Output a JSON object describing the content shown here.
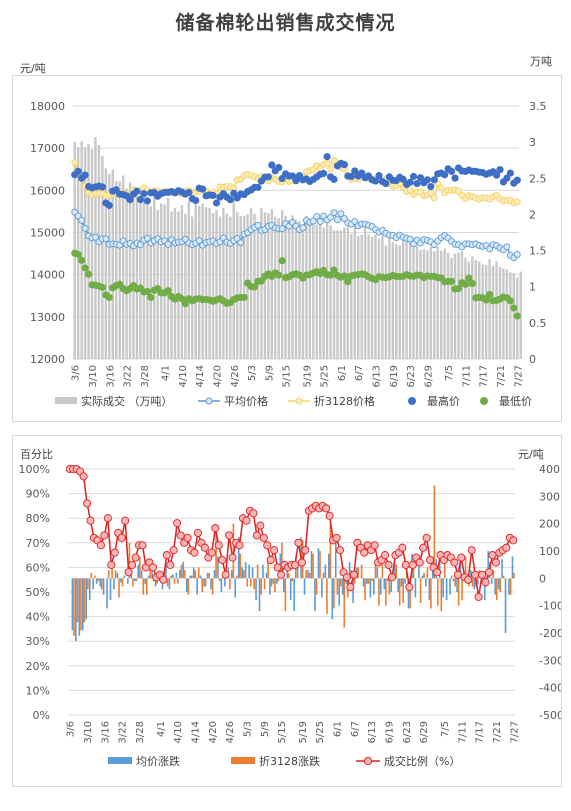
{
  "page_title": "储备棉轮出销售成交情况",
  "colors": {
    "volume_bar": "#c8c8c8",
    "avg_price": "#5b9bd5",
    "avg_price_fill": "#dbe8f5",
    "p3128": "#f5d26a",
    "p3128_fill": "#fbecb8",
    "max_price": "#3f6fc5",
    "min_price": "#70ad47",
    "avg_change": "#5b9bd5",
    "p3128_change": "#ed7d31",
    "ratio": "#e02020",
    "ratio_fill": "#f4b6b6",
    "grid": "#d9d9d9",
    "axis_text": "#595959"
  },
  "chart_data": [
    {
      "type": "line",
      "unit_left": "元/吨",
      "unit_right": "万吨",
      "ylim": [
        12000,
        18000
      ],
      "yticks": [
        12000,
        13000,
        14000,
        15000,
        16000,
        17000,
        18000
      ],
      "y2lim": [
        0,
        3.5
      ],
      "y2ticks": [
        "0",
        "0.5",
        "1",
        "1.5",
        "2",
        "2.5",
        "3",
        "3.5"
      ],
      "x_tick_labels": [
        "3/6",
        "3/10",
        "3/16",
        "3/22",
        "3/28",
        "4/1",
        "4/10",
        "4/14",
        "4/20",
        "4/26",
        "5/3",
        "5/9",
        "5/15",
        "5/19",
        "5/25",
        "6/1",
        "6/7",
        "6/13",
        "6/19",
        "6/23",
        "6/29",
        "7/5",
        "7/11",
        "7/17",
        "7/21",
        "7/27"
      ],
      "legend": [
        "实际成交 （万吨）",
        "平均价格",
        "折3128价格",
        "最高价",
        "最低价"
      ],
      "grid": true,
      "legend_position": "bottom",
      "series": {
        "volume": [
          3.0,
          2.93,
          3.01,
          2.93,
          2.97,
          2.9,
          3.07,
          2.96,
          2.81,
          2.64,
          2.56,
          2.62,
          2.46,
          2.46,
          2.54,
          2.36,
          2.44,
          2.38,
          2.33,
          2.32,
          2.29,
          2.18,
          2.11,
          2.26,
          2.06,
          2.15,
          2.14,
          2.23,
          2.04,
          2.09,
          2.04,
          2.13,
          2.01,
          2.18,
          1.97,
          2.19,
          2.12,
          2.15,
          2.1,
          2.09,
          2.02,
          2.06,
          1.97,
          2.09,
          2.01,
          1.97,
          2.21,
          2.03,
          1.98,
          1.98,
          2.0,
          2.09,
          2.01,
          1.87,
          2.09,
          2.03,
          2.02,
          2.07,
          1.97,
          1.95,
          2.06,
          1.98,
          1.92,
          1.99,
          1.92,
          1.91,
          1.87,
          1.98,
          1.87,
          1.91,
          1.86,
          1.93,
          1.82,
          1.9,
          1.85,
          1.78,
          1.78,
          1.78,
          1.82,
          1.83,
          1.73,
          1.84,
          1.7,
          1.72,
          1.84,
          1.72,
          1.69,
          1.72,
          1.66,
          1.72,
          1.57,
          1.72,
          1.62,
          1.59,
          1.57,
          1.68,
          1.63,
          1.62,
          1.54,
          1.56,
          1.51,
          1.52,
          1.5,
          1.55,
          1.49,
          1.55,
          1.5,
          1.53,
          1.47,
          1.4,
          1.46,
          1.47,
          1.49,
          1.4,
          1.35,
          1.42,
          1.37,
          1.35,
          1.31,
          1.3,
          1.38,
          1.29,
          1.35,
          1.27,
          1.25,
          1.24,
          1.2,
          1.19,
          1.13,
          1.21
        ],
        "avg_price": [
          15480,
          15390,
          15290,
          15100,
          14920,
          14870,
          14890,
          14780,
          14850,
          14850,
          14720,
          14730,
          14720,
          14700,
          14800,
          14720,
          14740,
          14680,
          14750,
          14710,
          14820,
          14860,
          14750,
          14810,
          14850,
          14780,
          14800,
          14720,
          14830,
          14750,
          14770,
          14780,
          14840,
          14750,
          14710,
          14750,
          14810,
          14700,
          14760,
          14780,
          14800,
          14740,
          14780,
          14870,
          14770,
          14740,
          14810,
          14860,
          14760,
          14960,
          15000,
          15070,
          15120,
          15170,
          15050,
          15070,
          15150,
          15170,
          15110,
          15090,
          15090,
          15210,
          15150,
          15240,
          15150,
          15070,
          15110,
          15290,
          15240,
          15270,
          15380,
          15260,
          15390,
          15300,
          15360,
          15470,
          15300,
          15450,
          15330,
          15230,
          15200,
          15260,
          15160,
          15200,
          15200,
          15170,
          15140,
          15070,
          15010,
          15050,
          14980,
          14940,
          14930,
          14880,
          14940,
          14890,
          14860,
          14840,
          14730,
          14820,
          14750,
          14830,
          14810,
          14780,
          14710,
          14800,
          14880,
          14930,
          14870,
          14790,
          14720,
          14710,
          14660,
          14730,
          14730,
          14710,
          14730,
          14690,
          14670,
          14690,
          14610,
          14710,
          14690,
          14630,
          14590,
          14660,
          14460,
          14400,
          14480
        ],
        "p3128": [
          16660,
          16450,
          16290,
          16100,
          15940,
          15900,
          15920,
          15930,
          15920,
          15880,
          15880,
          15910,
          15960,
          15990,
          15920,
          15890,
          15890,
          16020,
          15990,
          15980,
          16060,
          16000,
          15940,
          15990,
          15980,
          15960,
          15950,
          15980,
          15950,
          15960,
          15940,
          15920,
          15970,
          16000,
          15940,
          15950,
          15980,
          16020,
          15970,
          15940,
          15960,
          15900,
          16080,
          16070,
          16090,
          16090,
          16050,
          16250,
          16260,
          16350,
          16380,
          16350,
          16320,
          16280,
          16330,
          16270,
          16230,
          16290,
          16260,
          16210,
          16200,
          16330,
          16210,
          16230,
          16220,
          16300,
          16300,
          16440,
          16470,
          16490,
          16580,
          16520,
          16620,
          16640,
          16510,
          16710,
          16600,
          16540,
          16510,
          16330,
          16260,
          16290,
          16270,
          16310,
          16360,
          16280,
          16260,
          16250,
          16300,
          16200,
          16260,
          16160,
          16100,
          16110,
          16160,
          16060,
          15970,
          16010,
          15900,
          15960,
          15960,
          15870,
          15890,
          15930,
          15820,
          16160,
          16060,
          15940,
          16000,
          16000,
          16010,
          15980,
          15880,
          15800,
          15880,
          15850,
          15820,
          15790,
          15820,
          15820,
          15790,
          15850,
          15880,
          15800,
          15750,
          15760,
          15760,
          15700,
          15720
        ],
        "max_price": [
          16370,
          16450,
          16290,
          16360,
          16090,
          16060,
          16080,
          16100,
          16080,
          15700,
          15640,
          15980,
          16010,
          15910,
          15900,
          15870,
          15780,
          15910,
          15980,
          15780,
          15920,
          15750,
          15940,
          15950,
          15860,
          15920,
          15950,
          15950,
          15970,
          15940,
          15990,
          15960,
          15910,
          15950,
          15800,
          15760,
          16050,
          16030,
          15870,
          15890,
          15880,
          15700,
          15840,
          15920,
          15840,
          15780,
          15930,
          15820,
          15910,
          15900,
          15970,
          16010,
          16070,
          16070,
          16220,
          16310,
          16320,
          16600,
          16460,
          16540,
          16280,
          16390,
          16340,
          16340,
          16230,
          16350,
          16250,
          16270,
          16210,
          16260,
          16320,
          16380,
          16400,
          16800,
          16320,
          16260,
          16580,
          16640,
          16610,
          16340,
          16330,
          16460,
          16340,
          16410,
          16300,
          16340,
          16250,
          16220,
          16350,
          16210,
          16160,
          16320,
          16240,
          16230,
          16310,
          16260,
          16140,
          16190,
          16330,
          16160,
          16300,
          16180,
          16250,
          16090,
          16250,
          16390,
          16410,
          16370,
          16510,
          16450,
          16290,
          16530,
          16460,
          16450,
          16480,
          16450,
          16450,
          16430,
          16420,
          16380,
          16410,
          16440,
          16360,
          16490,
          16200,
          16290,
          16410,
          16170,
          16240
        ],
        "min_price": [
          14510,
          14480,
          14340,
          14160,
          14010,
          13760,
          13750,
          13730,
          13700,
          13520,
          13460,
          13690,
          13740,
          13770,
          13670,
          13620,
          13670,
          13740,
          13660,
          13680,
          13590,
          13600,
          13460,
          13630,
          13670,
          13570,
          13570,
          13620,
          13480,
          13420,
          13480,
          13430,
          13310,
          13430,
          13380,
          13420,
          13430,
          13410,
          13410,
          13400,
          13370,
          13400,
          13430,
          13380,
          13320,
          13340,
          13410,
          13450,
          13460,
          13460,
          13800,
          13720,
          13710,
          13840,
          13850,
          13960,
          14020,
          13960,
          14040,
          13990,
          14330,
          13930,
          13950,
          14000,
          14020,
          13990,
          13920,
          13990,
          14000,
          14040,
          14070,
          14030,
          14100,
          14000,
          13990,
          14110,
          13980,
          13940,
          13970,
          13830,
          13970,
          13990,
          14000,
          14020,
          14000,
          13950,
          13910,
          13880,
          13950,
          13940,
          13930,
          13950,
          13980,
          13960,
          13950,
          13960,
          14000,
          13970,
          13960,
          13990,
          13980,
          13930,
          13970,
          13960,
          13960,
          13930,
          13920,
          13830,
          13840,
          13840,
          13660,
          13670,
          13810,
          13770,
          13920,
          13790,
          13450,
          13460,
          13450,
          13400,
          13530,
          13380,
          13390,
          13420,
          13470,
          13450,
          13380,
          13210,
          13020
        ]
      }
    },
    {
      "type": "bar",
      "unit_left": "百分比",
      "unit_right": "元/吨",
      "ylim": [
        0,
        100
      ],
      "yticks": [
        "0%",
        "10%",
        "20%",
        "30%",
        "40%",
        "50%",
        "60%",
        "70%",
        "80%",
        "90%",
        "100%"
      ],
      "y2lim": [
        -500,
        400
      ],
      "y2ticks": [
        "-500",
        "-400",
        "-300",
        "-200",
        "-100",
        "0",
        "100",
        "200",
        "300",
        "400"
      ],
      "x_tick_labels": [
        "3/6",
        "3/10",
        "3/16",
        "3/22",
        "3/28",
        "4/1",
        "4/10",
        "4/14",
        "4/20",
        "4/26",
        "5/3",
        "5/9",
        "5/15",
        "5/19",
        "5/25",
        "6/1",
        "6/7",
        "6/13",
        "6/19",
        "6/23",
        "6/29",
        "7/5",
        "7/11",
        "7/17",
        "7/21",
        "7/27"
      ],
      "legend": [
        "均价涨跌",
        "折3128涨跌",
        "成交比例（%）"
      ],
      "grid": true,
      "legend_position": "bottom",
      "series": {
        "avg_change": [
          0,
          -190,
          -230,
          -210,
          -190,
          -150,
          -80,
          -40,
          -20,
          -30,
          -60,
          -110,
          -80,
          -40,
          20,
          -15,
          10,
          -20,
          30,
          -10,
          50,
          30,
          -20,
          10,
          25,
          -30,
          10,
          -40,
          50,
          -40,
          15,
          20,
          30,
          60,
          -50,
          10,
          40,
          -60,
          10,
          -30,
          20,
          -40,
          30,
          80,
          -50,
          -30,
          40,
          30,
          -70,
          150,
          40,
          60,
          50,
          40,
          -80,
          -120,
          50,
          20,
          -60,
          -20,
          -20,
          90,
          -50,
          40,
          -80,
          -120,
          40,
          150,
          -60,
          30,
          100,
          -120,
          110,
          -70,
          50,
          90,
          -150,
          140,
          -100,
          -60,
          -20,
          60,
          -90,
          40,
          0,
          -30,
          -20,
          -70,
          -60,
          40,
          -60,
          -40,
          -10,
          -50,
          60,
          -50,
          -30,
          -20,
          -110,
          90,
          -70,
          70,
          10,
          -30,
          -80,
          80,
          70,
          60,
          -70,
          -80,
          -60,
          -10,
          -50,
          70,
          10,
          -20,
          30,
          -40,
          -20,
          20,
          -80,
          100,
          -20,
          -60,
          -40,
          70,
          -200,
          -60,
          80
        ],
        "p3128_change": [
          0,
          -210,
          -160,
          -190,
          -160,
          -40,
          20,
          10,
          -10,
          -40,
          0,
          30,
          50,
          30,
          -70,
          -30,
          0,
          130,
          -30,
          -10,
          80,
          -60,
          -60,
          50,
          -10,
          -20,
          -10,
          30,
          -30,
          10,
          -20,
          -20,
          50,
          30,
          -60,
          10,
          30,
          40,
          -50,
          -30,
          20,
          -60,
          180,
          -10,
          20,
          0,
          -40,
          200,
          10,
          90,
          30,
          -30,
          -30,
          -40,
          50,
          -60,
          -40,
          60,
          -30,
          -50,
          -10,
          130,
          -120,
          20,
          -10,
          80,
          0,
          140,
          30,
          20,
          90,
          -60,
          100,
          20,
          -130,
          200,
          -110,
          -60,
          -30,
          -180,
          -70,
          30,
          -20,
          40,
          50,
          -80,
          -20,
          -10,
          50,
          -100,
          60,
          -100,
          -60,
          10,
          50,
          -100,
          -90,
          40,
          -110,
          60,
          0,
          -90,
          20,
          40,
          -110,
          340,
          -100,
          -120,
          60,
          0,
          10,
          -30,
          -100,
          -80,
          80,
          -30,
          -30,
          -30,
          30,
          0,
          -30,
          60,
          30,
          -80,
          -50,
          10,
          0,
          -60,
          20
        ],
        "ratio": [
          100,
          100,
          100,
          99,
          97,
          86,
          79,
          72,
          71,
          69,
          73,
          80,
          61,
          66,
          74,
          72,
          79,
          58,
          61,
          64,
          69,
          69,
          60,
          62,
          60,
          56,
          57,
          55,
          65,
          61,
          67,
          78,
          73,
          70,
          72,
          67,
          66,
          74,
          70,
          68,
          64,
          66,
          76,
          69,
          63,
          57,
          73,
          64,
          70,
          69,
          80,
          79,
          83,
          82,
          73,
          77,
          72,
          69,
          63,
          67,
          60,
          57,
          61,
          60,
          61,
          61,
          70,
          62,
          67,
          83,
          84,
          85,
          84,
          85,
          84,
          81,
          71,
          72,
          67,
          58,
          56,
          52,
          57,
          70,
          68,
          66,
          69,
          67,
          69,
          62,
          63,
          65,
          61,
          56,
          65,
          66,
          68,
          61,
          52,
          61,
          64,
          62,
          68,
          72,
          63,
          60,
          58,
          65,
          63,
          65,
          64,
          62,
          57,
          64,
          56,
          55,
          67,
          57,
          48,
          57,
          54,
          58,
          65,
          62,
          66,
          67,
          68,
          72,
          71
        ],
        "ratio_note": "成交比例 values in %"
      }
    }
  ]
}
